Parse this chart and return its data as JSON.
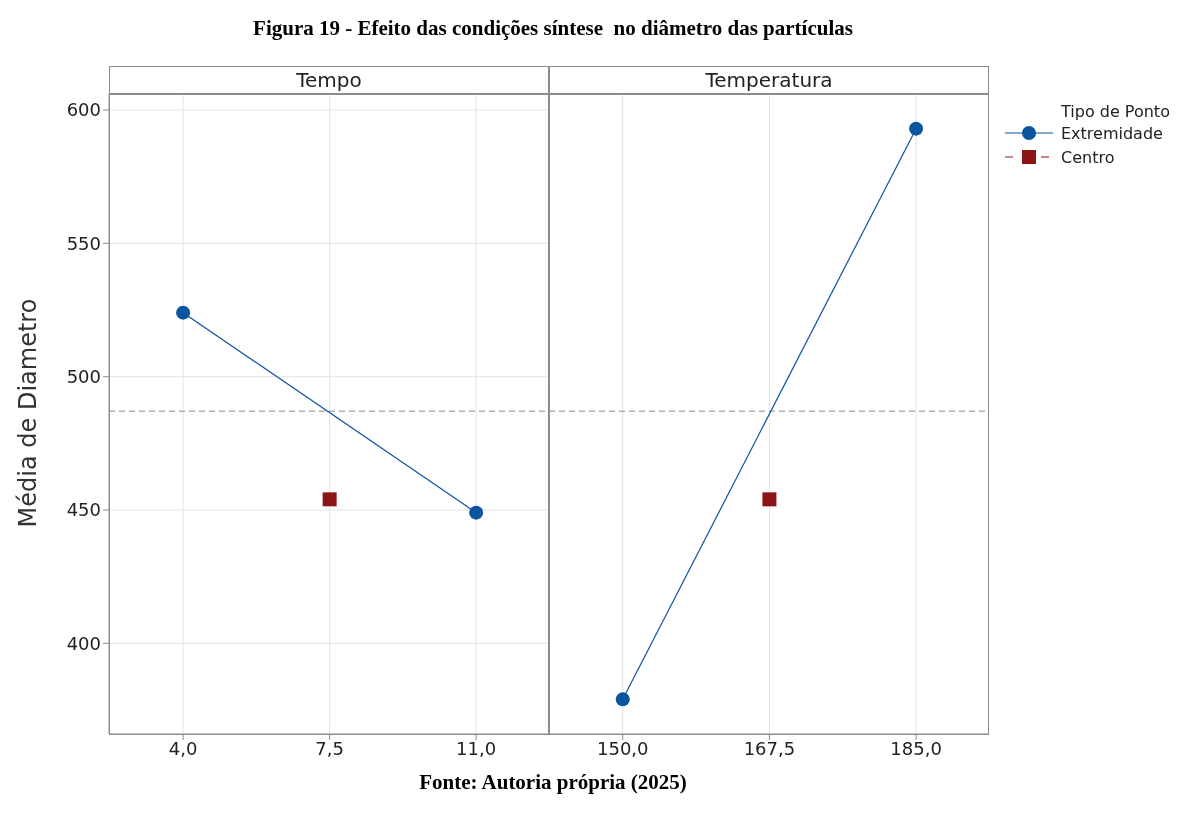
{
  "chart_data": [
    {
      "type": "line",
      "title": "Tempo",
      "ylabel": "Média de Diametro",
      "annotations": [
        "Figura 19 - Efeito das condições síntese  no diâmetro das partículas",
        "Fonte: Autoria própria (2025)"
      ],
      "xlim": [
        2.23,
        12.74
      ],
      "xticks": [
        {
          "value": 4,
          "label": "4,0"
        },
        {
          "value": 7.5,
          "label": "7,5"
        },
        {
          "value": 11,
          "label": "11,0"
        }
      ],
      "ylim": [
        366,
        606
      ],
      "yticks": [
        400,
        450,
        500,
        550,
        600
      ],
      "grid": true,
      "series": [
        {
          "type": "line",
          "color": "#0b54a0",
          "x": [
            4,
            11
          ],
          "values": [
            524,
            449
          ],
          "marker": "circle",
          "line_style": "solid"
        },
        {
          "type": "scatter",
          "color": "#8b1414",
          "x": [
            7.5
          ],
          "values": [
            454
          ],
          "marker": "square"
        }
      ],
      "ref_lines": [
        {
          "axis": "y",
          "value": 487,
          "color": "#b0b0b0",
          "line_style": "dashed"
        }
      ]
    },
    {
      "type": "line",
      "title": "Temperatura",
      "legend_title": "Tipo de Ponto",
      "legend": "top right",
      "tick_labels": "x",
      "xlim": [
        141.2,
        193.7
      ],
      "xticks": [
        {
          "value": 150,
          "label": "150,0"
        },
        {
          "value": 167.5,
          "label": "167,5"
        },
        {
          "value": 185,
          "label": "185,0"
        }
      ],
      "ylim": [
        366,
        606
      ],
      "yticks": [
        400,
        450,
        500,
        550,
        600
      ],
      "grid": true,
      "series": [
        {
          "type": "line",
          "name": "Extremidade",
          "color": "#0b54a0",
          "x": [
            150,
            185
          ],
          "values": [
            379,
            593
          ],
          "marker": "circle",
          "line_style": "solid"
        },
        {
          "type": "scatter",
          "name": "Centro",
          "color": "#8b1414",
          "x": [
            167.5
          ],
          "values": [
            454
          ],
          "marker": "square",
          "line_style": "dashed"
        }
      ],
      "ref_lines": [
        {
          "axis": "y",
          "value": 487,
          "color": "#b0b0b0",
          "line_style": "dashed"
        }
      ]
    }
  ]
}
